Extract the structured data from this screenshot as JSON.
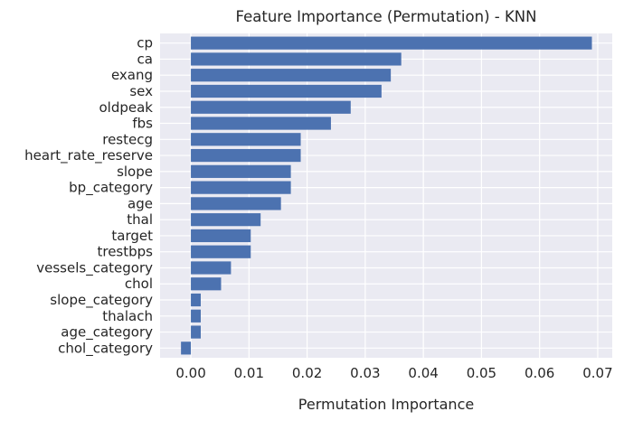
{
  "chart_data": {
    "type": "bar",
    "orientation": "horizontal",
    "title": "Feature Importance (Permutation) - KNN",
    "xlabel": "Permutation Importance",
    "ylabel": "",
    "xlim": [
      -0.0053,
      0.0725
    ],
    "xticks": [
      "0.00",
      "0.01",
      "0.02",
      "0.03",
      "0.04",
      "0.05",
      "0.06",
      "0.07"
    ],
    "xtick_values": [
      0,
      0.01,
      0.02,
      0.03,
      0.04,
      0.05,
      0.06,
      0.07
    ],
    "grid": true,
    "bar_color": "#4c72b0",
    "background_color": "#eaeaf2",
    "categories": [
      "cp",
      "ca",
      "exang",
      "sex",
      "oldpeak",
      "fbs",
      "restecg",
      "heart_rate_reserve",
      "slope",
      "bp_category",
      "age",
      "thal",
      "target",
      "trestbps",
      "vessels_category",
      "chol",
      "slope_category",
      "thalach",
      "age_category",
      "chol_category"
    ],
    "values": [
      0.069,
      0.0362,
      0.0344,
      0.0328,
      0.0275,
      0.0241,
      0.0189,
      0.0189,
      0.0172,
      0.0172,
      0.0155,
      0.012,
      0.0103,
      0.0103,
      0.0069,
      0.0052,
      0.0017,
      0.0017,
      0.0017,
      -0.0017
    ]
  }
}
